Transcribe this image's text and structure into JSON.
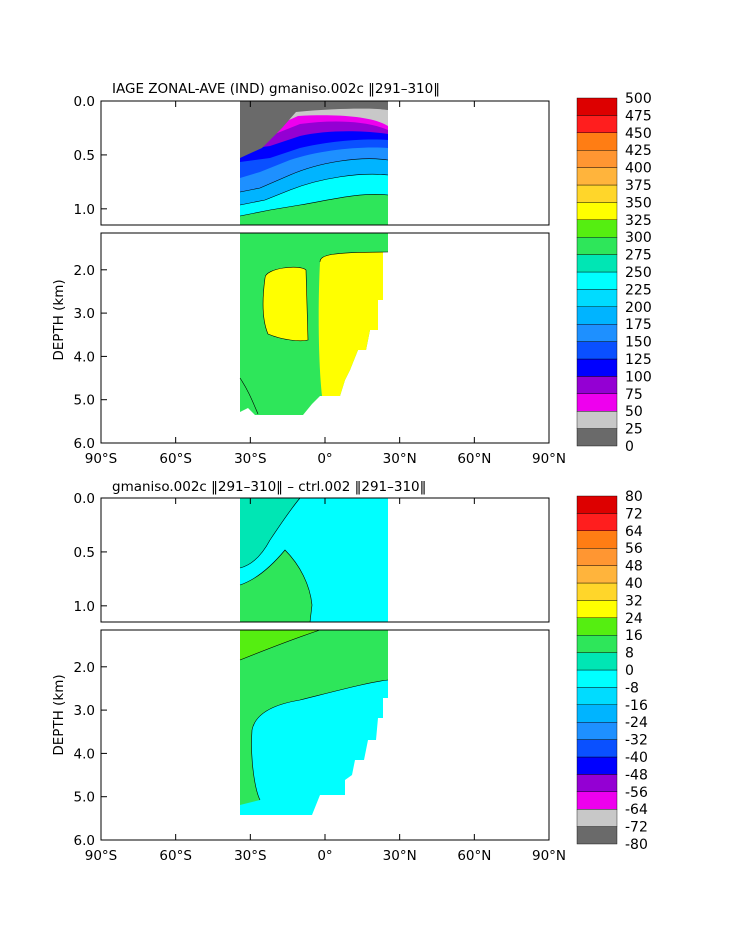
{
  "chart_data": [
    {
      "type": "heatmap",
      "title": "IAGE ZONAL-AVE (IND) gmaniso.002c ‖291–310‖",
      "ylabel": "DEPTH (km)",
      "x_ticks": [
        "90°S",
        "60°S",
        "30°S",
        "0°",
        "30°N",
        "60°N",
        "90°N"
      ],
      "y_ticks_upper": [
        "0.0",
        "0.5",
        "1.0"
      ],
      "y_ticks_lower": [
        "2.0",
        "3.0",
        "4.0",
        "5.0",
        "6.0"
      ],
      "xlim": [
        -90,
        90
      ],
      "ylim_km": [
        6.0,
        0.0
      ],
      "colorbar_levels": [
        "0",
        "25",
        "50",
        "75",
        "100",
        "125",
        "150",
        "175",
        "200",
        "225",
        "250",
        "275",
        "300",
        "325",
        "350",
        "375",
        "400",
        "425",
        "450",
        "475",
        "500"
      ],
      "colorbar_colors": [
        "#6a6a6a",
        "#c8c8c8",
        "#ee00ee",
        "#9400d3",
        "#0000ff",
        "#0a50ff",
        "#1e90ff",
        "#00b4ff",
        "#00dcff",
        "#00ffff",
        "#00e6b4",
        "#2ee65a",
        "#55ee11",
        "#ffff00",
        "#ffd62a",
        "#ffb43c",
        "#ff9632",
        "#ff7d14",
        "#ff1e1e",
        "#dd0000"
      ]
    },
    {
      "type": "heatmap",
      "title": "gmaniso.002c ‖291–310‖ – ctrl.002 ‖291–310‖",
      "ylabel": "DEPTH (km)",
      "x_ticks": [
        "90°S",
        "60°S",
        "30°S",
        "0°",
        "30°N",
        "60°N",
        "90°N"
      ],
      "y_ticks_upper": [
        "0.0",
        "0.5",
        "1.0"
      ],
      "y_ticks_lower": [
        "2.0",
        "3.0",
        "4.0",
        "5.0",
        "6.0"
      ],
      "xlim": [
        -90,
        90
      ],
      "ylim_km": [
        6.0,
        0.0
      ],
      "colorbar_levels": [
        "-80",
        "-72",
        "-64",
        "-56",
        "-48",
        "-40",
        "-32",
        "-24",
        "-16",
        "-8",
        "0",
        "8",
        "16",
        "24",
        "32",
        "40",
        "48",
        "56",
        "64",
        "72",
        "80"
      ],
      "colorbar_colors": [
        "#6a6a6a",
        "#c8c8c8",
        "#ee00ee",
        "#9400d3",
        "#0000ff",
        "#0a50ff",
        "#1e90ff",
        "#00b4ff",
        "#00dcff",
        "#00ffff",
        "#00e6b4",
        "#2ee65a",
        "#55ee11",
        "#ffff00",
        "#ffd62a",
        "#ffb43c",
        "#ff9632",
        "#ff7d14",
        "#ff1e1e",
        "#dd0000"
      ]
    }
  ]
}
